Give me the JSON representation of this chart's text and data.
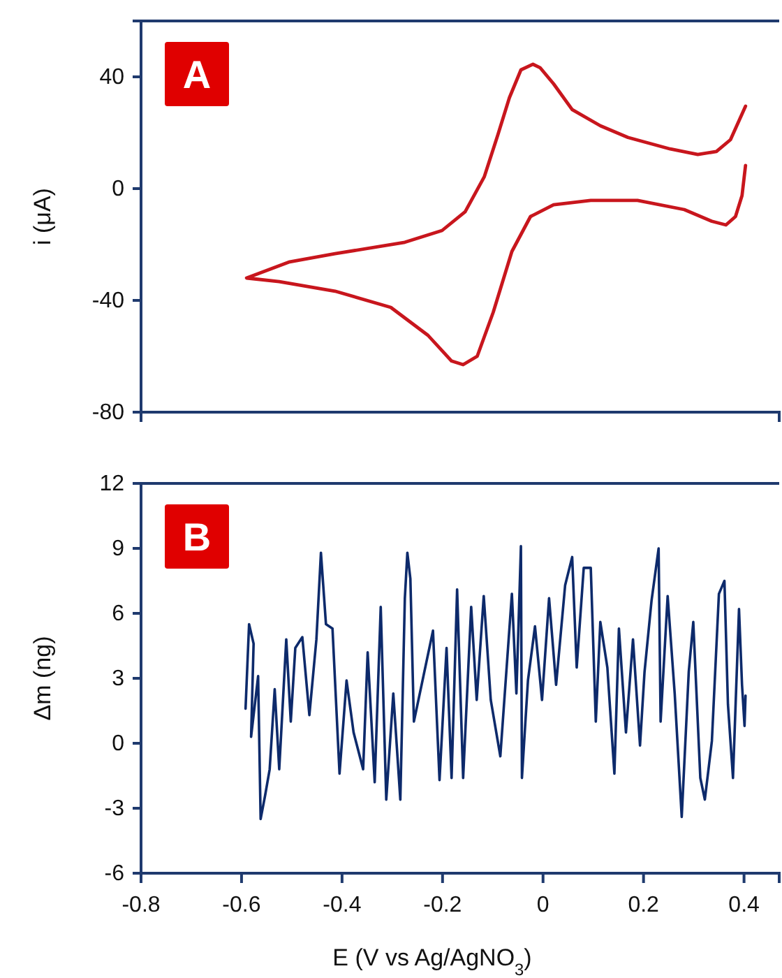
{
  "chart_data": [
    {
      "type": "line",
      "ylabel": "i (μA)",
      "annotations": [
        "A"
      ],
      "xlim": [
        -0.8,
        0.47
      ],
      "ylim": [
        -80,
        60
      ],
      "yticks": [
        -80,
        -40,
        0,
        40
      ],
      "tick_labels": "y",
      "grid": false,
      "marker": "none",
      "line_style": "solid",
      "series": [
        {
          "color": "#c8161d",
          "x": [
            0.403,
            0.373,
            0.345,
            0.308,
            0.253,
            0.169,
            0.114,
            0.058,
            0.021,
            -0.006,
            -0.02,
            -0.044,
            -0.067,
            -0.09,
            -0.117,
            -0.155,
            -0.201,
            -0.275,
            -0.414,
            -0.506,
            -0.59,
            -0.525,
            -0.414,
            -0.303,
            -0.229,
            -0.182,
            -0.159,
            -0.131,
            -0.099,
            -0.062,
            -0.025,
            0.021,
            0.095,
            0.188,
            0.281,
            0.336,
            0.364,
            0.383,
            0.396,
            0.403
          ],
          "values": [
            29.5,
            17.5,
            13.3,
            12.2,
            14.2,
            18.3,
            22.5,
            28.3,
            37.5,
            43.3,
            44.5,
            42.5,
            32.5,
            19.2,
            4.2,
            -8.3,
            -15,
            -19.2,
            -23.3,
            -26.3,
            -32,
            -33.3,
            -36.7,
            -42.5,
            -52.5,
            -61.7,
            -63,
            -60,
            -44.2,
            -22.5,
            -10,
            -5.8,
            -4.2,
            -4.2,
            -7.5,
            -11.7,
            -13,
            -10,
            -2.5,
            8.3
          ]
        }
      ]
    },
    {
      "type": "line",
      "xlabel": "E (V vs Ag/AgNO$_{3}$)",
      "ylabel": "Δm (ng)",
      "annotations": [
        "B"
      ],
      "xlim": [
        -0.8,
        0.47
      ],
      "xticks": [
        -0.8,
        -0.6,
        -0.4,
        -0.2,
        0,
        0.2,
        0.4
      ],
      "ylim": [
        -6,
        12
      ],
      "yticks": [
        -6,
        -3,
        0,
        3,
        6,
        9,
        12
      ],
      "grid": false,
      "marker": "none",
      "line_style": "solid",
      "series": [
        {
          "color": "#0d2a6b",
          "x": [
            -0.592,
            -0.585,
            -0.576,
            -0.581,
            -0.567,
            -0.562,
            -0.553,
            -0.544,
            -0.534,
            -0.525,
            -0.511,
            -0.502,
            -0.493,
            -0.479,
            -0.465,
            -0.451,
            -0.442,
            -0.432,
            -0.419,
            -0.405,
            -0.391,
            -0.377,
            -0.358,
            -0.349,
            -0.335,
            -0.323,
            -0.312,
            -0.298,
            -0.284,
            -0.275,
            -0.27,
            -0.264,
            -0.257,
            -0.238,
            -0.219,
            -0.206,
            -0.192,
            -0.182,
            -0.171,
            -0.159,
            -0.143,
            -0.132,
            -0.118,
            -0.104,
            -0.085,
            -0.062,
            -0.053,
            -0.044,
            -0.042,
            -0.03,
            -0.016,
            -0.002,
            0.012,
            0.026,
            0.044,
            0.058,
            0.067,
            0.081,
            0.095,
            0.105,
            0.114,
            0.128,
            0.142,
            0.151,
            0.165,
            0.179,
            0.193,
            0.202,
            0.216,
            0.23,
            0.234,
            0.248,
            0.262,
            0.276,
            0.29,
            0.299,
            0.313,
            0.322,
            0.336,
            0.35,
            0.361,
            0.368,
            0.378,
            0.39,
            0.396,
            0.401,
            0.403
          ],
          "values": [
            1.6,
            5.5,
            4.6,
            0.3,
            3.1,
            -3.5,
            -2.4,
            -1.2,
            2.5,
            -1.2,
            4.8,
            1.0,
            4.4,
            4.9,
            1.3,
            4.8,
            8.8,
            5.5,
            5.3,
            -1.4,
            2.9,
            0.5,
            -1.2,
            4.2,
            -1.8,
            6.3,
            -2.6,
            2.3,
            -2.6,
            6.7,
            8.8,
            7.6,
            1.0,
            3.1,
            5.2,
            -1.7,
            4.4,
            -1.6,
            7.1,
            -1.6,
            6.3,
            2.0,
            6.8,
            2.0,
            -0.6,
            6.9,
            2.3,
            9.1,
            -1.6,
            2.9,
            5.4,
            2.0,
            6.7,
            2.7,
            7.3,
            8.6,
            3.5,
            8.1,
            8.1,
            1.0,
            5.6,
            3.5,
            -1.4,
            5.3,
            0.5,
            4.8,
            -0.1,
            3.3,
            6.6,
            9.0,
            1.0,
            6.8,
            2.3,
            -3.4,
            3.3,
            5.6,
            -1.6,
            -2.6,
            0.1,
            6.9,
            7.5,
            1.8,
            -1.6,
            6.2,
            2.7,
            0.8,
            2.2
          ]
        }
      ]
    }
  ]
}
